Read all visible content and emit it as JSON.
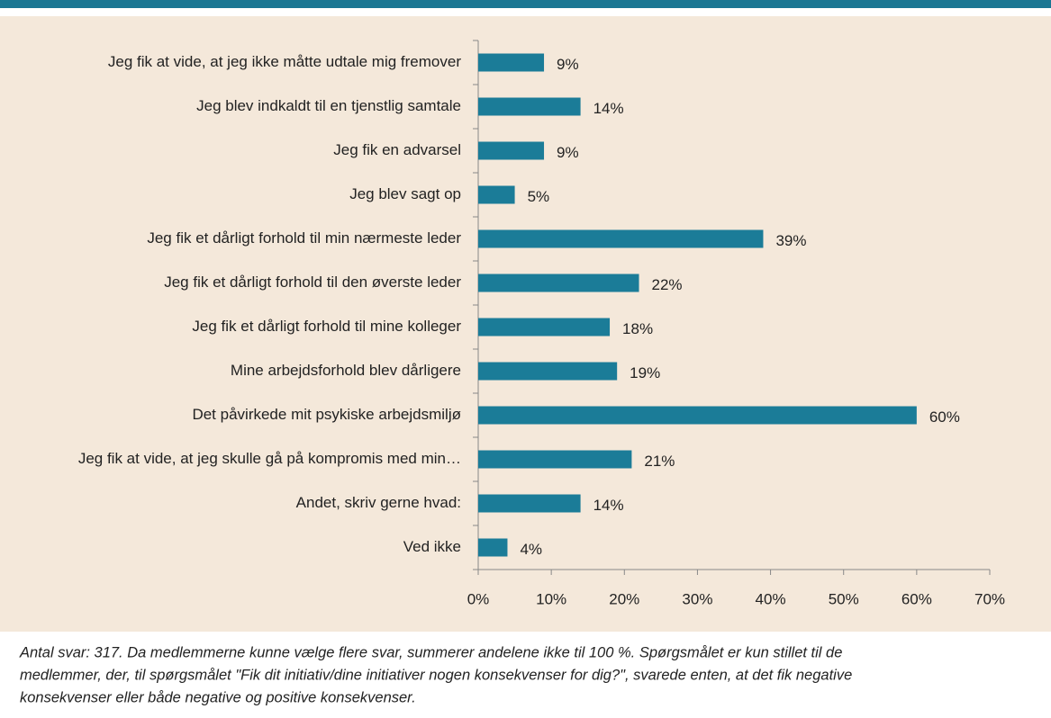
{
  "chart_data": {
    "type": "bar",
    "orientation": "horizontal",
    "categories": [
      "Jeg fik at vide, at jeg ikke måtte udtale mig fremover",
      "Jeg blev indkaldt til en tjenstlig samtale",
      "Jeg fik en advarsel",
      "Jeg blev sagt op",
      "Jeg fik et dårligt forhold til min nærmeste leder",
      "Jeg fik et dårligt forhold til den øverste leder",
      "Jeg fik et dårligt forhold til mine kolleger",
      "Mine arbejdsforhold blev dårligere",
      "Det påvirkede mit psykiske arbejdsmiljø",
      "Jeg fik at vide, at jeg skulle gå på kompromis med min…",
      "Andet, skriv gerne hvad:",
      "Ved ikke"
    ],
    "values": [
      9,
      14,
      9,
      5,
      39,
      22,
      18,
      19,
      60,
      21,
      14,
      4
    ],
    "value_labels": [
      "9%",
      "14%",
      "9%",
      "5%",
      "39%",
      "22%",
      "18%",
      "19%",
      "60%",
      "21%",
      "14%",
      "4%"
    ],
    "color": "#1b7c98",
    "xlim": [
      0,
      70
    ],
    "xticks": [
      {
        "value": 0,
        "label": "0%"
      },
      {
        "value": 10,
        "label": "10%"
      },
      {
        "value": 20,
        "label": "20%"
      },
      {
        "value": 30,
        "label": "30%"
      },
      {
        "value": 40,
        "label": "40%"
      },
      {
        "value": 50,
        "label": "50%"
      },
      {
        "value": 60,
        "label": "60%"
      },
      {
        "value": 70,
        "label": "70%"
      }
    ],
    "grid": false,
    "note": [
      "Antal svar: 317. Da medlemmerne kunne vælge flere svar, summerer andelene ikke til 100 %. Spørgsmålet er kun stillet til de",
      "medlemmer, der, til spørgsmålet \"Fik dit initiativ/dine initiativer nogen konsekvenser for dig?\", svarede enten, at det fik negative",
      "konsekvenser eller både negative og positive konsekvenser."
    ]
  }
}
